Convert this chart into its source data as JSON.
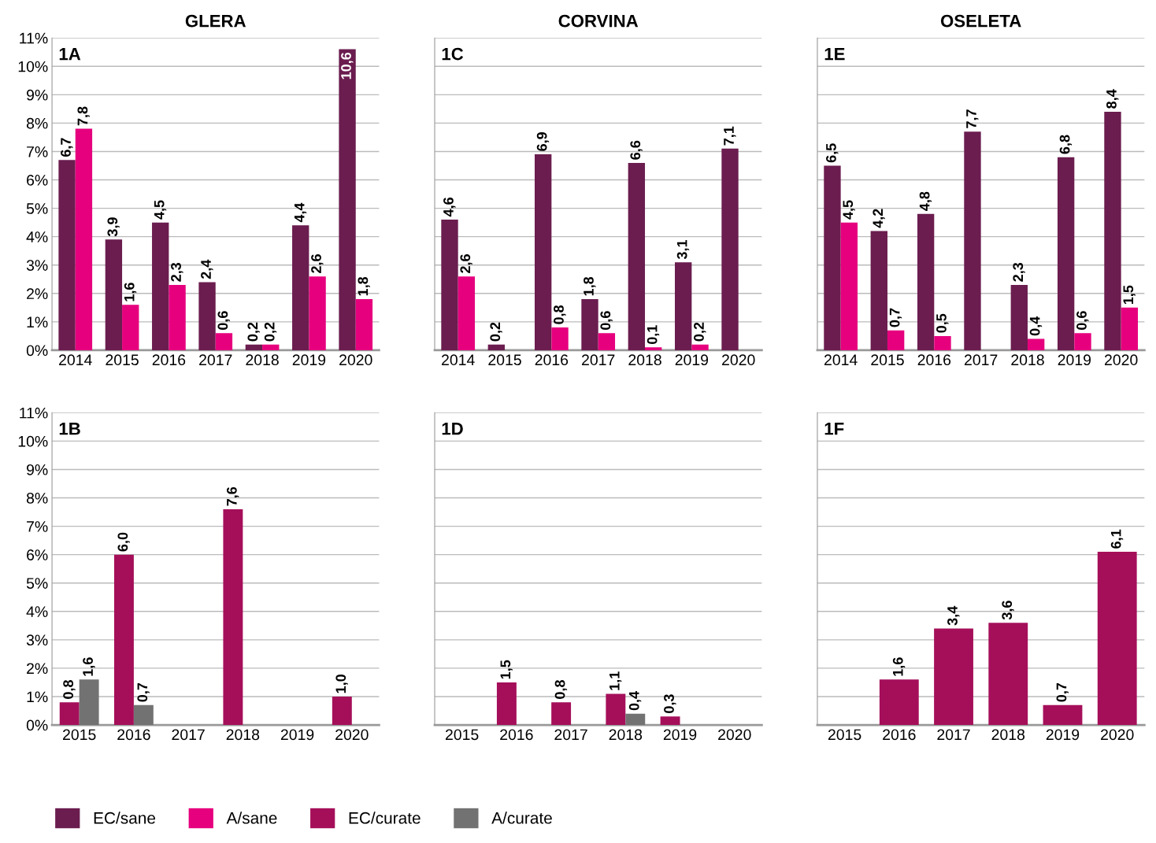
{
  "chart_data": [
    {
      "type": "bar",
      "title": "GLERA",
      "annotations": [
        "1A"
      ],
      "categories": [
        "2014",
        "2015",
        "2016",
        "2017",
        "2018",
        "2019",
        "2020"
      ],
      "series": [
        {
          "name": "EC/sane",
          "color": "#6b1d4f",
          "values": [
            6.7,
            3.9,
            4.5,
            2.4,
            0.2,
            4.4,
            10.6
          ],
          "value_labels": [
            "6,7",
            "3,9",
            "4,5",
            "2,4",
            "0,2",
            "4,4",
            "10,6"
          ]
        },
        {
          "name": "A/sane",
          "color": "#e6007e",
          "values": [
            7.8,
            1.6,
            2.3,
            0.6,
            0.2,
            2.6,
            1.8
          ],
          "value_labels": [
            "7,8",
            "1,6",
            "2,3",
            "0,6",
            "0,2",
            "2,6",
            "1,8"
          ]
        }
      ],
      "ylim": [
        0,
        11
      ],
      "yticks": [
        {
          "value": 0,
          "label": "0%"
        },
        {
          "value": 1,
          "label": "1%"
        },
        {
          "value": 2,
          "label": "2%"
        },
        {
          "value": 3,
          "label": "3%"
        },
        {
          "value": 4,
          "label": "4%"
        },
        {
          "value": 5,
          "label": "5%"
        },
        {
          "value": 6,
          "label": "6%"
        },
        {
          "value": 7,
          "label": "7%"
        },
        {
          "value": 8,
          "label": "8%"
        },
        {
          "value": 9,
          "label": "9%"
        },
        {
          "value": 10,
          "label": "10%"
        },
        {
          "value": 11,
          "label": "11%"
        }
      ],
      "grid": "y",
      "legend": "bottom"
    },
    {
      "type": "bar",
      "title": "CORVINA",
      "annotations": [
        "1C"
      ],
      "categories": [
        "2014",
        "2015",
        "2016",
        "2017",
        "2018",
        "2019",
        "2020"
      ],
      "series": [
        {
          "name": "EC/sane",
          "color": "#6b1d4f",
          "values": [
            4.6,
            0.2,
            6.9,
            1.8,
            6.6,
            3.1,
            7.1
          ],
          "value_labels": [
            "4,6",
            "0,2",
            "6,9",
            "1,8",
            "6,6",
            "3,1",
            "7,1"
          ]
        },
        {
          "name": "A/sane",
          "color": "#e6007e",
          "values": [
            2.6,
            null,
            0.8,
            0.6,
            0.1,
            0.2,
            null
          ],
          "value_labels": [
            "2,6",
            null,
            "0,8",
            "0,6",
            "0,1",
            "0,2",
            null
          ]
        }
      ],
      "ylim": [
        0,
        11
      ],
      "yticks": [
        0,
        1,
        2,
        3,
        4,
        5,
        6,
        7,
        8,
        9,
        10,
        11
      ],
      "grid": "y",
      "tick_labels": "x",
      "legend": "bottom"
    },
    {
      "type": "bar",
      "title": "OSELETA",
      "annotations": [
        "1E"
      ],
      "categories": [
        "2014",
        "2015",
        "2016",
        "2017",
        "2018",
        "2019",
        "2020"
      ],
      "series": [
        {
          "name": "EC/sane",
          "color": "#6b1d4f",
          "values": [
            6.5,
            4.2,
            4.8,
            7.7,
            2.3,
            6.8,
            8.4
          ],
          "value_labels": [
            "6,5",
            "4,2",
            "4,8",
            "7,7",
            "2,3",
            "6,8",
            "8,4"
          ]
        },
        {
          "name": "A/sane",
          "color": "#e6007e",
          "values": [
            4.5,
            0.7,
            0.5,
            null,
            0.4,
            0.6,
            1.5
          ],
          "value_labels": [
            "4,5",
            "0,7",
            "0,5",
            null,
            "0,4",
            "0,6",
            "1,5"
          ]
        }
      ],
      "ylim": [
        0,
        11
      ],
      "yticks": [
        0,
        1,
        2,
        3,
        4,
        5,
        6,
        7,
        8,
        9,
        10,
        11
      ],
      "grid": "y",
      "tick_labels": "x",
      "legend": "bottom"
    },
    {
      "type": "bar",
      "annotations": [
        "1B"
      ],
      "categories": [
        "2015",
        "2016",
        "2017",
        "2018",
        "2019",
        "2020"
      ],
      "series": [
        {
          "name": "EC/curate",
          "color": "#a50f5a",
          "values": [
            0.8,
            6.0,
            null,
            7.6,
            null,
            1.0
          ],
          "value_labels": [
            "0,8",
            "6,0",
            null,
            "7,6",
            null,
            "1,0"
          ]
        },
        {
          "name": "A/curate",
          "color": "#727272",
          "values": [
            1.6,
            0.7,
            null,
            null,
            null,
            null
          ],
          "value_labels": [
            "1,6",
            "0,7",
            null,
            null,
            null,
            null
          ]
        }
      ],
      "ylim": [
        0,
        11
      ],
      "yticks": [
        {
          "value": 0,
          "label": "0%"
        },
        {
          "value": 1,
          "label": "1%"
        },
        {
          "value": 2,
          "label": "2%"
        },
        {
          "value": 3,
          "label": "3%"
        },
        {
          "value": 4,
          "label": "4%"
        },
        {
          "value": 5,
          "label": "5%"
        },
        {
          "value": 6,
          "label": "6%"
        },
        {
          "value": 7,
          "label": "7%"
        },
        {
          "value": 8,
          "label": "8%"
        },
        {
          "value": 9,
          "label": "9%"
        },
        {
          "value": 10,
          "label": "10%"
        },
        {
          "value": 11,
          "label": "11%"
        }
      ],
      "grid": "y",
      "legend": "bottom"
    },
    {
      "type": "bar",
      "annotations": [
        "1D"
      ],
      "categories": [
        "2015",
        "2016",
        "2017",
        "2018",
        "2019",
        "2020"
      ],
      "series": [
        {
          "name": "EC/curate",
          "color": "#a50f5a",
          "values": [
            null,
            1.5,
            0.8,
            1.1,
            0.3,
            null
          ],
          "value_labels": [
            null,
            "1,5",
            "0,8",
            "1,1",
            "0,3",
            null
          ]
        },
        {
          "name": "A/curate",
          "color": "#727272",
          "values": [
            null,
            null,
            null,
            0.4,
            null,
            null
          ],
          "value_labels": [
            null,
            null,
            null,
            "0,4",
            null,
            null
          ]
        }
      ],
      "ylim": [
        0,
        11
      ],
      "yticks": [
        0,
        1,
        2,
        3,
        4,
        5,
        6,
        7,
        8,
        9,
        10,
        11
      ],
      "grid": "y",
      "tick_labels": "x",
      "legend": "bottom"
    },
    {
      "type": "bar",
      "annotations": [
        "1F"
      ],
      "categories": [
        "2015",
        "2016",
        "2017",
        "2018",
        "2019",
        "2020"
      ],
      "series": [
        {
          "name": "EC/curate",
          "color": "#a50f5a",
          "values": [
            null,
            1.6,
            3.4,
            3.6,
            0.7,
            6.1
          ],
          "value_labels": [
            null,
            "1,6",
            "3,4",
            "3,6",
            "0,7",
            "6,1"
          ]
        }
      ],
      "ylim": [
        0,
        11
      ],
      "yticks": [
        0,
        1,
        2,
        3,
        4,
        5,
        6,
        7,
        8,
        9,
        10,
        11
      ],
      "grid": "y",
      "tick_labels": "x",
      "legend": "bottom"
    }
  ]
}
